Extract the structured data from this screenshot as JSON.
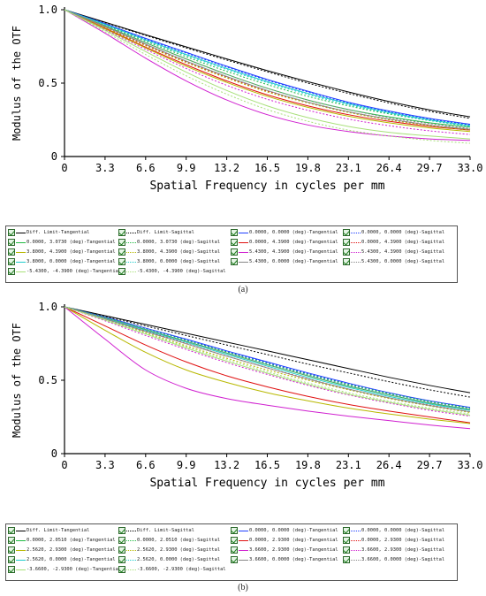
{
  "colors": {
    "black": "#000000",
    "blue": "#1f3fff",
    "green": "#22bb44",
    "red": "#e01010",
    "olive": "#b8b800",
    "magenta": "#d020d0",
    "cyan": "#22cccc",
    "gray": "#888888",
    "lightgreen": "#a8e07a"
  },
  "panels": [
    {
      "caption": "(a)",
      "chart_data": {
        "type": "line",
        "xlabel": "Spatial Frequency in cycles per mm",
        "ylabel": "Modulus of the OTF",
        "xlim": [
          0,
          33
        ],
        "ylim": [
          0,
          1
        ],
        "xticks": [
          "0",
          "3.3",
          "6.6",
          "9.9",
          "13.2",
          "16.5",
          "19.8",
          "23.1",
          "26.4",
          "29.7",
          "33.0"
        ],
        "yticks": [
          "0",
          "0.5",
          "1.0"
        ],
        "grid": false,
        "x": [
          0,
          3.3,
          6.6,
          9.9,
          13.2,
          16.5,
          19.8,
          23.1,
          26.4,
          29.7,
          33
        ],
        "series": [
          {
            "name": "Diff. Limit-Tangential",
            "color": "black",
            "dash": "solid",
            "values": [
              1.0,
              0.915,
              0.83,
              0.747,
              0.665,
              0.585,
              0.51,
              0.44,
              0.375,
              0.318,
              0.27
            ]
          },
          {
            "name": "Diff. Limit-Sagittal",
            "color": "black",
            "dash": "dotted",
            "values": [
              1.0,
              0.912,
              0.825,
              0.74,
              0.657,
              0.577,
              0.5,
              0.43,
              0.365,
              0.308,
              0.26
            ]
          },
          {
            "name": "0.0000, 0.0000 (deg)-Tangential",
            "color": "blue",
            "dash": "solid",
            "values": [
              1.0,
              0.905,
              0.805,
              0.71,
              0.615,
              0.525,
              0.445,
              0.37,
              0.31,
              0.26,
              0.22
            ]
          },
          {
            "name": "0.0000, 0.0000 (deg)-Sagittal",
            "color": "blue",
            "dash": "dotted",
            "values": [
              1.0,
              0.903,
              0.8,
              0.705,
              0.61,
              0.52,
              0.44,
              0.365,
              0.305,
              0.255,
              0.215
            ]
          },
          {
            "name": "0.0000, 3.0730 (deg)-Tangential",
            "color": "green",
            "dash": "solid",
            "values": [
              1.0,
              0.89,
              0.775,
              0.665,
              0.56,
              0.465,
              0.385,
              0.32,
              0.27,
              0.23,
              0.2
            ]
          },
          {
            "name": "0.0000, 3.0730 (deg)-Sagittal",
            "color": "green",
            "dash": "dotted",
            "values": [
              1.0,
              0.895,
              0.785,
              0.68,
              0.58,
              0.49,
              0.41,
              0.345,
              0.29,
              0.245,
              0.21
            ]
          },
          {
            "name": "0.0000, 4.3900 (deg)-Tangential",
            "color": "red",
            "dash": "solid",
            "values": [
              1.0,
              0.875,
              0.745,
              0.625,
              0.515,
              0.42,
              0.345,
              0.285,
              0.24,
              0.205,
              0.18
            ]
          },
          {
            "name": "0.0000, 4.3900 (deg)-Sagittal",
            "color": "red",
            "dash": "dotted",
            "values": [
              1.0,
              0.88,
              0.76,
              0.645,
              0.54,
              0.445,
              0.37,
              0.305,
              0.255,
              0.215,
              0.185
            ]
          },
          {
            "name": "3.8000, 4.3900 (deg)-Tangential",
            "color": "olive",
            "dash": "solid",
            "values": [
              1.0,
              0.87,
              0.74,
              0.615,
              0.505,
              0.41,
              0.335,
              0.275,
              0.23,
              0.195,
              0.17
            ]
          },
          {
            "name": "3.8000, 4.3900 (deg)-Sagittal",
            "color": "olive",
            "dash": "dotted",
            "values": [
              1.0,
              0.878,
              0.755,
              0.64,
              0.535,
              0.44,
              0.365,
              0.3,
              0.25,
              0.21,
              0.18
            ]
          },
          {
            "name": "5.4300, 4.3900 (deg)-Tangential",
            "color": "magenta",
            "dash": "solid",
            "values": [
              1.0,
              0.84,
              0.67,
              0.515,
              0.385,
              0.285,
              0.215,
              0.17,
              0.14,
              0.12,
              0.11
            ]
          },
          {
            "name": "5.4300, 4.3900 (deg)-Sagittal",
            "color": "magenta",
            "dash": "dotted",
            "values": [
              1.0,
              0.865,
              0.73,
              0.6,
              0.485,
              0.39,
              0.315,
              0.255,
              0.21,
              0.175,
              0.15
            ]
          },
          {
            "name": "3.8000, 0.0000 (deg)-Tangential",
            "color": "cyan",
            "dash": "solid",
            "values": [
              1.0,
              0.9,
              0.795,
              0.695,
              0.6,
              0.51,
              0.43,
              0.36,
              0.3,
              0.25,
              0.21
            ]
          },
          {
            "name": "3.8000, 0.0000 (deg)-Sagittal",
            "color": "cyan",
            "dash": "dotted",
            "values": [
              1.0,
              0.898,
              0.792,
              0.69,
              0.593,
              0.503,
              0.423,
              0.353,
              0.295,
              0.245,
              0.205
            ]
          },
          {
            "name": "5.4300, 0.0000 (deg)-Tangential",
            "color": "gray",
            "dash": "solid",
            "values": [
              1.0,
              0.885,
              0.765,
              0.65,
              0.545,
              0.45,
              0.37,
              0.305,
              0.255,
              0.215,
              0.185
            ]
          },
          {
            "name": "5.4300, 0.0000 (deg)-Sagittal",
            "color": "gray",
            "dash": "dotted",
            "values": [
              1.0,
              0.89,
              0.775,
              0.665,
              0.56,
              0.465,
              0.385,
              0.32,
              0.265,
              0.225,
              0.19
            ]
          },
          {
            "name": "-5.4300, -4.3900 (deg)-Tangential",
            "color": "lightgreen",
            "dash": "solid",
            "values": [
              1.0,
              0.86,
              0.715,
              0.575,
              0.45,
              0.345,
              0.265,
              0.205,
              0.165,
              0.14,
              0.12
            ]
          },
          {
            "name": "-5.4300, -4.3900 (deg)-Sagittal",
            "color": "lightgreen",
            "dash": "dotted",
            "values": [
              1.0,
              0.85,
              0.695,
              0.55,
              0.425,
              0.32,
              0.24,
              0.18,
              0.14,
              0.11,
              0.09
            ]
          }
        ]
      }
    },
    {
      "caption": "(b)",
      "chart_data": {
        "type": "line",
        "xlabel": "Spatial Frequency in cycles per mm",
        "ylabel": "Modulus of the OTF",
        "xlim": [
          0,
          33
        ],
        "ylim": [
          0,
          1
        ],
        "xticks": [
          "0",
          "3.3",
          "6.6",
          "9.9",
          "13.2",
          "16.5",
          "19.8",
          "23.1",
          "26.4",
          "29.7",
          "33.0"
        ],
        "yticks": [
          "0",
          "0.5",
          "1.0"
        ],
        "grid": false,
        "x": [
          0,
          3.3,
          6.6,
          9.9,
          13.2,
          16.5,
          19.8,
          23.1,
          26.4,
          29.7,
          33
        ],
        "series": [
          {
            "name": "Diff. Limit-Tangential",
            "color": "black",
            "dash": "solid",
            "values": [
              1.0,
              0.94,
              0.88,
              0.82,
              0.76,
              0.7,
              0.64,
              0.58,
              0.52,
              0.465,
              0.415
            ]
          },
          {
            "name": "Diff. Limit-Sagittal",
            "color": "black",
            "dash": "dotted",
            "values": [
              1.0,
              0.935,
              0.87,
              0.805,
              0.74,
              0.675,
              0.61,
              0.55,
              0.49,
              0.435,
              0.385
            ]
          },
          {
            "name": "0.0000, 0.0000 (deg)-Tangential",
            "color": "blue",
            "dash": "solid",
            "values": [
              1.0,
              0.93,
              0.855,
              0.78,
              0.7,
              0.625,
              0.55,
              0.48,
              0.415,
              0.36,
              0.315
            ]
          },
          {
            "name": "0.0000, 0.0000 (deg)-Sagittal",
            "color": "blue",
            "dash": "dotted",
            "values": [
              1.0,
              0.928,
              0.852,
              0.776,
              0.696,
              0.62,
              0.545,
              0.475,
              0.412,
              0.358,
              0.31
            ]
          },
          {
            "name": "0.0000, 2.0510 (deg)-Tangential",
            "color": "green",
            "dash": "solid",
            "values": [
              1.0,
              0.925,
              0.845,
              0.765,
              0.685,
              0.605,
              0.53,
              0.46,
              0.4,
              0.345,
              0.3
            ]
          },
          {
            "name": "0.0000, 2.0510 (deg)-Sagittal",
            "color": "green",
            "dash": "dotted",
            "values": [
              1.0,
              0.928,
              0.85,
              0.772,
              0.692,
              0.614,
              0.54,
              0.472,
              0.41,
              0.356,
              0.31
            ]
          },
          {
            "name": "0.0000, 2.9300 (deg)-Tangential",
            "color": "red",
            "dash": "solid",
            "values": [
              1.0,
              0.87,
              0.74,
              0.625,
              0.53,
              0.455,
              0.39,
              0.335,
              0.29,
              0.25,
              0.21
            ]
          },
          {
            "name": "0.0000, 2.9300 (deg)-Sagittal",
            "color": "red",
            "dash": "dotted",
            "values": [
              1.0,
              0.92,
              0.835,
              0.75,
              0.665,
              0.585,
              0.51,
              0.44,
              0.38,
              0.33,
              0.285
            ]
          },
          {
            "name": "2.5620, 2.9300 (deg)-Tangential",
            "color": "olive",
            "dash": "solid",
            "values": [
              1.0,
              0.84,
              0.69,
              0.57,
              0.485,
              0.415,
              0.36,
              0.31,
              0.27,
              0.235,
              0.205
            ]
          },
          {
            "name": "2.5620, 2.9300 (deg)-Sagittal",
            "color": "olive",
            "dash": "dotted",
            "values": [
              1.0,
              0.915,
              0.825,
              0.735,
              0.65,
              0.57,
              0.5,
              0.435,
              0.375,
              0.325,
              0.28
            ]
          },
          {
            "name": "3.6600, 2.9300 (deg)-Tangential",
            "color": "magenta",
            "dash": "solid",
            "values": [
              1.0,
              0.78,
              0.57,
              0.445,
              0.375,
              0.33,
              0.29,
              0.255,
              0.225,
              0.195,
              0.17
            ]
          },
          {
            "name": "3.6600, 2.9300 (deg)-Sagittal",
            "color": "magenta",
            "dash": "dotted",
            "values": [
              1.0,
              0.905,
              0.805,
              0.71,
              0.62,
              0.54,
              0.465,
              0.4,
              0.345,
              0.295,
              0.255
            ]
          },
          {
            "name": "2.5620, 0.0000 (deg)-Tangential",
            "color": "cyan",
            "dash": "solid",
            "values": [
              1.0,
              0.922,
              0.84,
              0.758,
              0.676,
              0.596,
              0.52,
              0.452,
              0.39,
              0.338,
              0.295
            ]
          },
          {
            "name": "2.5620, 0.0000 (deg)-Sagittal",
            "color": "cyan",
            "dash": "dotted",
            "values": [
              1.0,
              0.926,
              0.848,
              0.768,
              0.688,
              0.61,
              0.535,
              0.466,
              0.404,
              0.35,
              0.305
            ]
          },
          {
            "name": "3.6600, 0.0000 (deg)-Tangential",
            "color": "gray",
            "dash": "solid",
            "values": [
              1.0,
              0.918,
              0.832,
              0.748,
              0.664,
              0.584,
              0.508,
              0.44,
              0.38,
              0.328,
              0.285
            ]
          },
          {
            "name": "3.6600, 0.0000 (deg)-Sagittal",
            "color": "gray",
            "dash": "dotted",
            "values": [
              1.0,
              0.925,
              0.845,
              0.765,
              0.685,
              0.607,
              0.532,
              0.463,
              0.401,
              0.347,
              0.302
            ]
          },
          {
            "name": "-3.6600, -2.9300 (deg)-Tangential",
            "color": "lightgreen",
            "dash": "solid",
            "values": [
              1.0,
              0.91,
              0.815,
              0.72,
              0.63,
              0.548,
              0.472,
              0.405,
              0.35,
              0.302,
              0.262
            ]
          },
          {
            "name": "-3.6600, -2.9300 (deg)-Sagittal",
            "color": "lightgreen",
            "dash": "dotted",
            "values": [
              1.0,
              0.912,
              0.82,
              0.728,
              0.64,
              0.558,
              0.482,
              0.415,
              0.358,
              0.31,
              0.27
            ]
          }
        ]
      }
    }
  ]
}
